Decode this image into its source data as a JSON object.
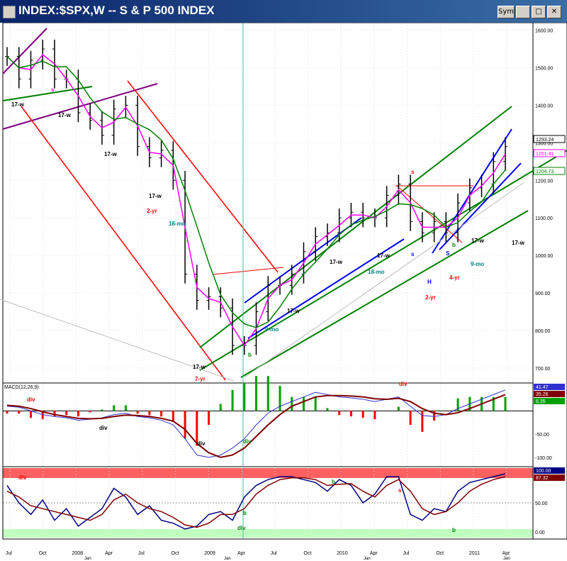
{
  "window": {
    "title": "INDEX:$SPX,W -- S & P 500 INDEX",
    "buttons": [
      "Sym",
      "",
      "□",
      "✕"
    ]
  },
  "colors": {
    "price_bars": "#000000",
    "ma_magenta": "#ff00ff",
    "ma_green": "#008000",
    "channel_red": "#ff0000",
    "channel_blue": "#0000ff",
    "channel_green": "#008000",
    "macd_line": "#3030d0",
    "signal_line": "#800000",
    "hist_pos": "#00a000",
    "hist_neg": "#ff0000",
    "stoch_fast": "#000080",
    "stoch_slow": "#800000",
    "overbought_band": "#ff6060",
    "oversold_band": "#c0ffc0"
  },
  "chart_data": [
    {
      "type": "line",
      "panel": "price",
      "title": "INDEX:$SPX,W -- S & P 500 INDEX",
      "x": [
        "2007-07",
        "2007-08",
        "2007-09",
        "2007-10",
        "2007-11",
        "2007-12",
        "2008-01",
        "2008-02",
        "2008-03",
        "2008-04",
        "2008-05",
        "2008-06",
        "2008-07",
        "2008-08",
        "2008-09",
        "2008-10",
        "2008-11",
        "2008-12",
        "2009-01",
        "2009-02",
        "2009-03",
        "2009-04",
        "2009-05",
        "2009-06",
        "2009-07",
        "2009-08",
        "2009-09",
        "2009-10",
        "2009-11",
        "2009-12",
        "2010-01",
        "2010-02",
        "2010-03",
        "2010-04",
        "2010-05",
        "2010-06",
        "2010-07",
        "2010-08",
        "2010-09",
        "2010-10",
        "2010-11",
        "2010-12",
        "2011-01"
      ],
      "series": [
        {
          "values": [
            1530,
            1470,
            1520,
            1550,
            1470,
            1470,
            1380,
            1360,
            1320,
            1390,
            1400,
            1290,
            1260,
            1280,
            1200,
            950,
            880,
            890,
            860,
            760,
            760,
            850,
            920,
            920,
            950,
            1010,
            1050,
            1060,
            1100,
            1115,
            1100,
            1100,
            1160,
            1190,
            1090,
            1060,
            1090,
            1060,
            1140,
            1180,
            1190,
            1250,
            1290
          ]
        }
      ],
      "ylim": [
        660,
        1620
      ],
      "y_ticks": [
        "700.00",
        "800.00",
        "900.00",
        "1000.00",
        "1100.00",
        "1200.00",
        "1300.00",
        "1400.00",
        "1500.00",
        "1600.00"
      ],
      "price_labels": [
        "1293.24",
        "1251.41",
        "1204.73"
      ],
      "annotations": [
        "s",
        "17-w",
        "17-w",
        "17-w",
        "17-w",
        "2-yr",
        "18-mo",
        "17-w",
        "7-yr",
        "b",
        "9-mo",
        "17-w",
        "17-w",
        "18-mo",
        "s",
        "17-w",
        "s",
        "H",
        "S",
        "b",
        "2-yr",
        "4-yr",
        "17-w",
        "9-mo",
        "17-w"
      ]
    },
    {
      "type": "line",
      "panel": "macd",
      "title": "MACD(12,26,9)",
      "series": [
        {
          "values": [
            10,
            8,
            0,
            -8,
            -12,
            -15,
            -20,
            -18,
            -15,
            -8,
            -5,
            -12,
            -15,
            -20,
            -30,
            -60,
            -95,
            -100,
            -95,
            -80,
            -60,
            -30,
            -5,
            10,
            20,
            30,
            40,
            35,
            30,
            28,
            25,
            20,
            25,
            30,
            10,
            -10,
            -12,
            -8,
            5,
            15,
            25,
            35,
            45
          ]
        },
        {
          "values": [
            12,
            10,
            5,
            -2,
            -8,
            -12,
            -16,
            -17,
            -16,
            -12,
            -9,
            -10,
            -12,
            -16,
            -22,
            -40,
            -70,
            -90,
            -100,
            -95,
            -80,
            -55,
            -30,
            -8,
            10,
            20,
            30,
            33,
            33,
            32,
            30,
            26,
            25,
            27,
            20,
            5,
            -5,
            -8,
            -4,
            5,
            15,
            25,
            35
          ]
        }
      ],
      "ylim": [
        -120,
        60
      ],
      "y_ticks": [
        "50.00",
        "-50.00",
        "-100.00"
      ],
      "price_labels": [
        "41.47",
        "35.26",
        "6.35"
      ],
      "annotations": [
        "div",
        "div",
        "div",
        "div",
        "div"
      ]
    },
    {
      "type": "line",
      "panel": "stochastic",
      "series": [
        {
          "values": [
            80,
            50,
            30,
            55,
            20,
            40,
            10,
            25,
            40,
            75,
            60,
            30,
            45,
            20,
            15,
            5,
            10,
            30,
            35,
            20,
            60,
            80,
            90,
            95,
            95,
            90,
            85,
            70,
            90,
            80,
            50,
            65,
            95,
            95,
            30,
            20,
            40,
            35,
            70,
            85,
            90,
            95,
            100
          ]
        },
        {
          "values": [
            70,
            60,
            45,
            40,
            35,
            30,
            25,
            20,
            30,
            55,
            65,
            50,
            40,
            35,
            25,
            12,
            8,
            15,
            30,
            30,
            40,
            65,
            80,
            90,
            93,
            93,
            90,
            80,
            82,
            83,
            70,
            60,
            80,
            90,
            70,
            40,
            30,
            35,
            50,
            70,
            82,
            90,
            95
          ]
        }
      ],
      "ylim": [
        0,
        100
      ],
      "y_ticks": [
        "50.00",
        "0.00"
      ],
      "price_labels": [
        "100.00",
        "87.32"
      ],
      "annotations": [
        "div",
        "b",
        "div",
        "b",
        "s",
        "b"
      ]
    }
  ],
  "x_axis": {
    "labels": [
      {
        "label": "Jul"
      },
      {
        "label": "Oct"
      },
      {
        "label": "2008"
      },
      {
        "label": "Apr"
      },
      {
        "label": "Jul"
      },
      {
        "label": "Oct"
      },
      {
        "label": "2009"
      },
      {
        "label": "Apr"
      },
      {
        "label": "Jul"
      },
      {
        "label": "Oct"
      },
      {
        "label": "2010"
      },
      {
        "label": "Apr"
      },
      {
        "label": "Jul"
      },
      {
        "label": "Oct"
      },
      {
        "label": "2011"
      },
      {
        "label": "Apr"
      }
    ],
    "sublabels": [
      "Jan",
      "Jan",
      "Jan",
      "Jan"
    ]
  }
}
